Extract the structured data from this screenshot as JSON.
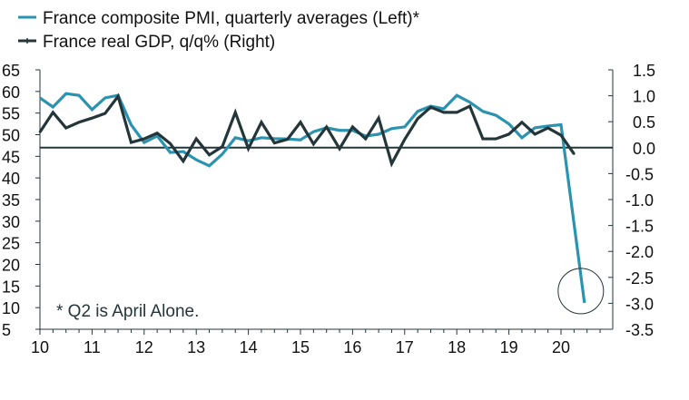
{
  "chart_data": {
    "type": "line",
    "title": "",
    "legend": [
      {
        "name": "France composite PMI, quarterly averages (Left)*",
        "color": "#2a93b0",
        "marker": false
      },
      {
        "name": "France real GDP, q/q% (Right)",
        "color": "#24363a",
        "marker": true
      }
    ],
    "legend_position": "top-left",
    "x_axis": {
      "tick_labels": [
        "10",
        "11",
        "12",
        "13",
        "14",
        "15",
        "16",
        "17",
        "18",
        "19",
        "20"
      ],
      "range": [
        2010.0,
        2021.0
      ],
      "minor_ticks": "quarterly"
    },
    "y_left": {
      "ylim": [
        5,
        65
      ],
      "tick_labels": [
        "65",
        "60",
        "55",
        "50",
        "45",
        "40",
        "35",
        "30",
        "25",
        "20",
        "15",
        "10",
        "5"
      ],
      "ticks": [
        65,
        60,
        55,
        50,
        45,
        40,
        35,
        30,
        25,
        20,
        15,
        10,
        5
      ]
    },
    "y_right": {
      "ylim": [
        -3.5,
        1.5
      ],
      "tick_labels": [
        "1.5",
        "1.0",
        "0.5",
        "0.0",
        "-0.5",
        "-1.0",
        "-1.5",
        "-2.0",
        "-2.5",
        "-3.0",
        "-3.5"
      ],
      "ticks": [
        1.5,
        1.0,
        0.5,
        0.0,
        -0.5,
        -1.0,
        -1.5,
        -2.0,
        -2.5,
        -3.0,
        -3.5
      ]
    },
    "zero_line_right": 0.0,
    "series": [
      {
        "name": "France composite PMI, quarterly averages (Left)*",
        "axis": "left",
        "x": [
          2010.0,
          2010.25,
          2010.5,
          2010.75,
          2011.0,
          2011.25,
          2011.5,
          2011.75,
          2012.0,
          2012.25,
          2012.5,
          2012.75,
          2013.0,
          2013.25,
          2013.5,
          2013.75,
          2014.0,
          2014.25,
          2014.5,
          2014.75,
          2015.0,
          2015.25,
          2015.5,
          2015.75,
          2016.0,
          2016.25,
          2016.5,
          2016.75,
          2017.0,
          2017.25,
          2017.5,
          2017.75,
          2018.0,
          2018.25,
          2018.5,
          2018.75,
          2019.0,
          2019.25,
          2019.5,
          2019.75,
          2020.0,
          2020.45
        ],
        "values": [
          58.5,
          56.4,
          59.5,
          59.1,
          55.8,
          58.5,
          59.1,
          52.3,
          48.2,
          49.7,
          45.9,
          46.1,
          44.2,
          42.8,
          45.5,
          49.3,
          48.6,
          49.3,
          49.1,
          49.0,
          48.8,
          50.7,
          51.6,
          51.0,
          51.0,
          49.7,
          50.1,
          51.4,
          51.8,
          55.4,
          56.6,
          56.0,
          59.1,
          57.5,
          55.4,
          54.5,
          52.5,
          49.3,
          51.6,
          52.0,
          52.3,
          11.1
        ]
      },
      {
        "name": "France real GDP, q/q% (Right)",
        "axis": "right",
        "x": [
          2010.0,
          2010.25,
          2010.5,
          2010.75,
          2011.0,
          2011.25,
          2011.5,
          2011.75,
          2012.0,
          2012.25,
          2012.5,
          2012.75,
          2013.0,
          2013.25,
          2013.5,
          2013.75,
          2014.0,
          2014.25,
          2014.5,
          2014.75,
          2015.0,
          2015.25,
          2015.5,
          2015.75,
          2016.0,
          2016.25,
          2016.5,
          2016.75,
          2017.0,
          2017.25,
          2017.5,
          2017.75,
          2018.0,
          2018.25,
          2018.5,
          2018.75,
          2019.0,
          2019.25,
          2019.5,
          2019.75,
          2020.0,
          2020.25
        ],
        "values": [
          0.3,
          0.68,
          0.38,
          0.49,
          0.57,
          0.66,
          0.99,
          0.1,
          0.17,
          0.28,
          0.08,
          -0.26,
          0.17,
          -0.14,
          0.02,
          0.68,
          -0.02,
          0.49,
          0.09,
          0.16,
          0.49,
          0.07,
          0.4,
          -0.02,
          0.4,
          0.17,
          0.57,
          -0.31,
          0.16,
          0.56,
          0.78,
          0.68,
          0.68,
          0.8,
          0.17,
          0.17,
          0.26,
          0.49,
          0.26,
          0.38,
          0.24,
          -0.12
        ]
      }
    ],
    "annotations": [
      {
        "text": "* Q2 is April Alone.",
        "position": "bottom-left"
      },
      {
        "type": "circle",
        "target": "PMI last point (2020 Q2 April)"
      }
    ]
  }
}
